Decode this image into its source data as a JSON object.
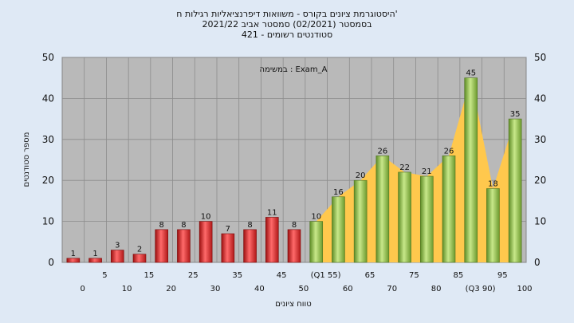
{
  "chart_data": {
    "type": "bar",
    "title_lines": [
      "היסטוגרמת ציונים בקורס - משוואות דיפרנציאליות רגילות ח'",
      "בסמסטר  (02/2021)  סמסטר אביב 2021/22",
      "סטודנטים רשומים - 421"
    ],
    "annotation": "במשימה : Exam_A",
    "xlabel": "טווח ציונים",
    "ylabel": "מספר סטודנטים",
    "ylim": [
      0,
      50
    ],
    "yticks": [
      0,
      10,
      20,
      30,
      40,
      50
    ],
    "grid": true,
    "categories": [
      "0",
      "5",
      "10",
      "15",
      "20",
      "25",
      "30",
      "35",
      "40",
      "45",
      "50",
      "(Q1 55)",
      "60",
      "65",
      "70",
      "75",
      "80",
      "85",
      "(Q3 90)",
      "95",
      "100"
    ],
    "values": [
      1,
      1,
      3,
      2,
      8,
      8,
      10,
      7,
      8,
      11,
      8,
      10,
      16,
      20,
      26,
      22,
      21,
      26,
      45,
      18,
      35
    ],
    "colors": {
      "below_pass": "#dd2f2f",
      "pass": "#8cc04a",
      "highlight_area": "#ffc84d",
      "plot_bg": "#b9b9b9",
      "page_bg": "#dfe9f5"
    }
  }
}
